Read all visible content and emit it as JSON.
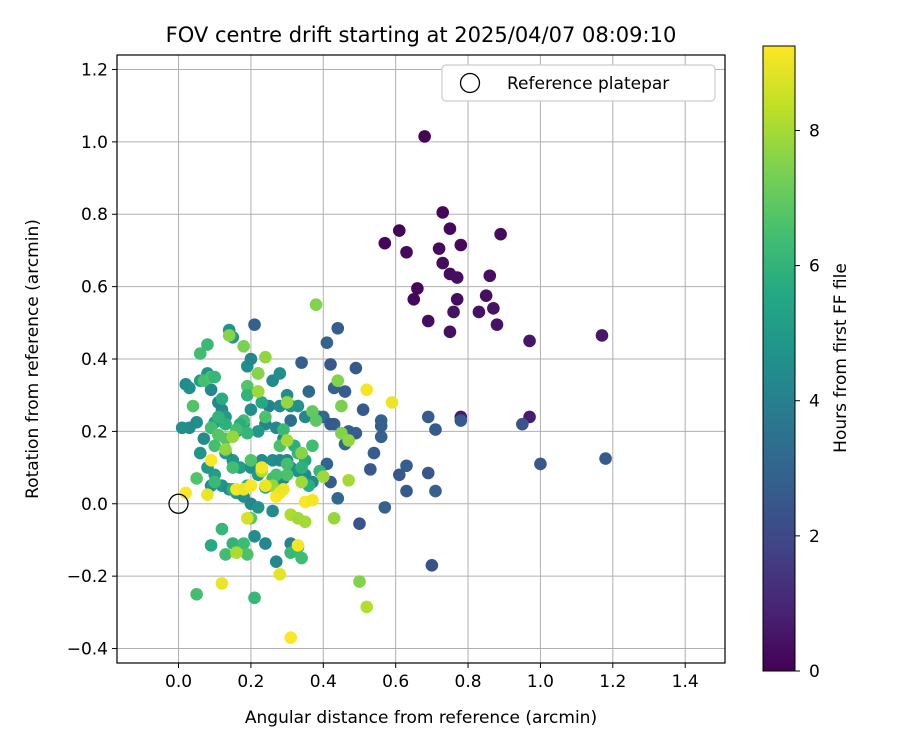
{
  "chart_data": {
    "type": "scatter",
    "title": "FOV centre drift starting at 2025/04/07 08:09:10",
    "xlabel": "Angular distance from reference (arcmin)",
    "ylabel": "Rotation from reference (arcmin)",
    "xlim": [
      -0.17,
      1.51
    ],
    "ylim": [
      -0.44,
      1.24
    ],
    "xticks": [
      0.0,
      0.2,
      0.4,
      0.6,
      0.8,
      1.0,
      1.2,
      1.4
    ],
    "xtick_labels": [
      "0.0",
      "0.2",
      "0.4",
      "0.6",
      "0.8",
      "1.0",
      "1.2",
      "1.4"
    ],
    "yticks": [
      -0.4,
      -0.2,
      0.0,
      0.2,
      0.4,
      0.6,
      0.8,
      1.0,
      1.2
    ],
    "ytick_labels": [
      "−0.4",
      "−0.2",
      "0.0",
      "0.2",
      "0.4",
      "0.6",
      "0.8",
      "1.0",
      "1.2"
    ],
    "grid": true,
    "colormap": "viridis",
    "color_range": [
      0,
      9.25
    ],
    "colorbar": {
      "label": "Hours from first FF file",
      "ticks": [
        0,
        2,
        4,
        6,
        8
      ],
      "tick_labels": [
        "0",
        "2",
        "4",
        "6",
        "8"
      ]
    },
    "legend": {
      "placement": "top-right",
      "entries": [
        {
          "label": "Reference platepar",
          "marker": "open-circle",
          "x": 0.0,
          "y": 0.0
        }
      ]
    },
    "series": [
      {
        "points": [
          [
            0.68,
            1.015
          ],
          [
            0.73,
            0.805
          ],
          [
            0.61,
            0.755
          ],
          [
            0.75,
            0.76
          ],
          [
            0.89,
            0.745
          ],
          [
            0.57,
            0.72
          ],
          [
            0.72,
            0.705
          ],
          [
            0.78,
            0.715
          ],
          [
            0.63,
            0.695
          ],
          [
            0.73,
            0.665
          ],
          [
            0.75,
            0.635
          ],
          [
            0.77,
            0.625
          ],
          [
            0.86,
            0.63
          ],
          [
            0.66,
            0.595
          ],
          [
            0.65,
            0.565
          ],
          [
            0.77,
            0.565
          ],
          [
            0.85,
            0.575
          ],
          [
            0.76,
            0.53
          ],
          [
            0.83,
            0.53
          ],
          [
            0.87,
            0.54
          ],
          [
            0.69,
            0.505
          ],
          [
            0.88,
            0.495
          ],
          [
            0.75,
            0.475
          ],
          [
            0.97,
            0.45
          ],
          [
            1.17,
            0.465
          ],
          [
            0.78,
            0.24
          ],
          [
            0.97,
            0.24
          ]
        ],
        "hours": [
          0.05,
          0.15,
          0.1,
          0.2,
          0.3,
          0.12,
          0.25,
          0.18,
          0.22,
          0.28,
          0.3,
          0.35,
          0.4,
          0.15,
          0.2,
          0.33,
          0.38,
          0.45,
          0.42,
          0.48,
          0.3,
          0.5,
          0.4,
          0.55,
          0.6,
          0.65,
          0.7
        ]
      },
      {
        "points": [
          [
            0.21,
            0.495
          ],
          [
            0.44,
            0.485
          ],
          [
            0.41,
            0.445
          ],
          [
            0.49,
            0.375
          ],
          [
            0.34,
            0.39
          ],
          [
            0.42,
            0.385
          ],
          [
            0.43,
            0.32
          ],
          [
            0.46,
            0.31
          ],
          [
            0.4,
            0.24
          ],
          [
            0.43,
            0.22
          ],
          [
            0.42,
            0.22
          ],
          [
            0.47,
            0.2
          ],
          [
            0.49,
            0.195
          ],
          [
            0.51,
            0.26
          ],
          [
            0.56,
            0.23
          ],
          [
            0.56,
            0.215
          ],
          [
            0.56,
            0.185
          ],
          [
            0.54,
            0.14
          ],
          [
            0.41,
            0.11
          ],
          [
            0.53,
            0.095
          ],
          [
            0.63,
            0.105
          ],
          [
            0.61,
            0.08
          ],
          [
            0.42,
            0.06
          ],
          [
            0.44,
            0.015
          ],
          [
            0.63,
            0.035
          ],
          [
            0.57,
            -0.01
          ],
          [
            0.5,
            -0.055
          ],
          [
            0.69,
            0.24
          ],
          [
            0.71,
            0.205
          ],
          [
            0.69,
            0.085
          ],
          [
            0.71,
            0.035
          ],
          [
            0.7,
            -0.17
          ],
          [
            0.78,
            0.23
          ],
          [
            0.95,
            0.22
          ],
          [
            1.0,
            0.11
          ],
          [
            1.18,
            0.125
          ],
          [
            0.46,
            0.165
          ],
          [
            0.39,
            0.24
          ],
          [
            0.31,
            0.23
          ],
          [
            0.36,
            0.31
          ]
        ],
        "hours": [
          2.8,
          2.7,
          2.9,
          2.6,
          2.8,
          2.5,
          2.9,
          2.7,
          3.0,
          2.8,
          2.6,
          2.9,
          2.7,
          2.6,
          3.0,
          2.8,
          2.9,
          2.7,
          3.0,
          2.6,
          2.8,
          2.5,
          2.7,
          3.1,
          2.6,
          2.9,
          2.4,
          2.7,
          2.6,
          2.5,
          2.8,
          2.3,
          2.6,
          2.4,
          2.5,
          2.6,
          3.1,
          3.2,
          3.3,
          3.1
        ]
      },
      {
        "points": [
          [
            0.02,
            0.33
          ],
          [
            0.03,
            0.32
          ],
          [
            0.06,
            0.34
          ],
          [
            0.08,
            0.36
          ],
          [
            0.09,
            0.315
          ],
          [
            0.05,
            0.225
          ],
          [
            0.1,
            0.225
          ],
          [
            0.12,
            0.26
          ],
          [
            0.13,
            0.24
          ],
          [
            0.14,
            0.48
          ],
          [
            0.15,
            0.46
          ],
          [
            0.19,
            0.38
          ],
          [
            0.2,
            0.4
          ],
          [
            0.22,
            0.36
          ],
          [
            0.26,
            0.34
          ],
          [
            0.28,
            0.36
          ],
          [
            0.3,
            0.3
          ],
          [
            0.25,
            0.27
          ],
          [
            0.24,
            0.22
          ],
          [
            0.27,
            0.21
          ],
          [
            0.28,
            0.27
          ],
          [
            0.31,
            0.27
          ],
          [
            0.33,
            0.27
          ],
          [
            0.35,
            0.24
          ],
          [
            0.16,
            0.2
          ],
          [
            0.18,
            0.22
          ],
          [
            0.2,
            0.26
          ],
          [
            0.22,
            0.2
          ],
          [
            0.23,
            0.12
          ],
          [
            0.26,
            0.12
          ],
          [
            0.28,
            0.12
          ],
          [
            0.3,
            0.12
          ],
          [
            0.31,
            0.1
          ],
          [
            0.33,
            0.09
          ],
          [
            0.35,
            0.08
          ],
          [
            0.37,
            0.06
          ],
          [
            0.13,
            0.14
          ],
          [
            0.15,
            0.12
          ],
          [
            0.17,
            0.1
          ],
          [
            0.2,
            0.1
          ],
          [
            0.22,
            0.08
          ],
          [
            0.25,
            0.05
          ],
          [
            0.27,
            0.05
          ],
          [
            0.29,
            0.07
          ],
          [
            0.1,
            0.08
          ],
          [
            0.12,
            0.05
          ],
          [
            0.14,
            0.04
          ],
          [
            0.16,
            0.03
          ],
          [
            0.18,
            0.02
          ],
          [
            0.2,
            0.0
          ],
          [
            0.22,
            -0.01
          ],
          [
            0.26,
            -0.02
          ],
          [
            0.21,
            -0.09
          ],
          [
            0.24,
            -0.11
          ],
          [
            0.27,
            -0.16
          ],
          [
            0.31,
            -0.11
          ],
          [
            0.06,
            0.14
          ],
          [
            0.07,
            0.18
          ],
          [
            0.08,
            0.1
          ],
          [
            0.09,
            0.05
          ],
          [
            0.03,
            0.21
          ],
          [
            0.01,
            0.21
          ],
          [
            0.11,
            0.28
          ],
          [
            0.29,
            0.18
          ]
        ],
        "hours": [
          4.4,
          4.6,
          5.0,
          4.8,
          4.3,
          4.6,
          5.2,
          4.4,
          5.0,
          4.7,
          4.9,
          4.5,
          4.2,
          4.4,
          4.3,
          4.6,
          4.5,
          4.1,
          4.2,
          4.3,
          4.4,
          4.6,
          4.7,
          4.2,
          4.8,
          5.1,
          4.5,
          4.9,
          4.3,
          4.6,
          4.4,
          4.2,
          4.5,
          4.7,
          4.4,
          4.3,
          5.0,
          4.8,
          5.2,
          4.6,
          4.9,
          4.4,
          4.6,
          4.3,
          5.1,
          4.7,
          4.5,
          4.9,
          4.6,
          4.3,
          4.8,
          4.4,
          4.5,
          4.2,
          4.3,
          4.1,
          4.7,
          4.5,
          4.9,
          4.6,
          4.4,
          4.6,
          4.2,
          4.3
        ]
      },
      {
        "points": [
          [
            0.06,
            0.415
          ],
          [
            0.08,
            0.44
          ],
          [
            0.07,
            0.34
          ],
          [
            0.09,
            0.35
          ],
          [
            0.1,
            0.35
          ],
          [
            0.12,
            0.29
          ],
          [
            0.19,
            0.325
          ],
          [
            0.19,
            0.3
          ],
          [
            0.22,
            0.31
          ],
          [
            0.23,
            0.28
          ],
          [
            0.18,
            0.23
          ],
          [
            0.17,
            0.22
          ],
          [
            0.11,
            0.24
          ],
          [
            0.13,
            0.22
          ],
          [
            0.16,
            0.205
          ],
          [
            0.19,
            0.195
          ],
          [
            0.29,
            0.205
          ],
          [
            0.32,
            0.16
          ],
          [
            0.33,
            0.14
          ],
          [
            0.35,
            0.12
          ],
          [
            0.37,
            0.16
          ],
          [
            0.34,
            0.1
          ],
          [
            0.39,
            0.09
          ],
          [
            0.36,
            0.05
          ],
          [
            0.3,
            0.08
          ],
          [
            0.26,
            0.07
          ],
          [
            0.24,
            0.045
          ],
          [
            0.19,
            0.05
          ],
          [
            0.15,
            0.04
          ],
          [
            0.1,
            0.06
          ],
          [
            0.05,
            0.07
          ],
          [
            0.2,
            -0.04
          ],
          [
            0.27,
            0.08
          ],
          [
            0.12,
            -0.07
          ],
          [
            0.09,
            -0.115
          ],
          [
            0.15,
            -0.11
          ],
          [
            0.18,
            -0.11
          ],
          [
            0.33,
            -0.12
          ],
          [
            0.31,
            -0.135
          ],
          [
            0.13,
            -0.14
          ],
          [
            0.19,
            -0.14
          ],
          [
            0.05,
            -0.25
          ],
          [
            0.21,
            -0.26
          ],
          [
            0.34,
            -0.15
          ],
          [
            0.04,
            0.27
          ],
          [
            0.09,
            0.21
          ],
          [
            0.11,
            0.19
          ],
          [
            0.24,
            0.24
          ],
          [
            0.37,
            0.255
          ],
          [
            0.38,
            0.23
          ],
          [
            0.3,
            0.11
          ],
          [
            0.2,
            0.12
          ],
          [
            0.15,
            0.1
          ],
          [
            0.28,
            0.16
          ],
          [
            0.13,
            0.18
          ],
          [
            0.1,
            0.16
          ]
        ],
        "hours": [
          6.4,
          6.2,
          6.5,
          6.6,
          6.1,
          5.7,
          6.7,
          6.0,
          6.3,
          5.6,
          6.4,
          5.8,
          6.0,
          5.9,
          6.5,
          6.1,
          6.2,
          5.8,
          6.0,
          5.6,
          6.4,
          5.9,
          6.1,
          5.7,
          6.6,
          6.3,
          5.8,
          6.0,
          5.9,
          6.2,
          6.7,
          6.8,
          6.5,
          6.1,
          5.6,
          6.0,
          6.3,
          5.9,
          6.2,
          6.4,
          6.6,
          6.5,
          6.1,
          6.3,
          6.7,
          6.4,
          6.8,
          6.6,
          7.0,
          6.9,
          6.5,
          6.7,
          6.4,
          6.6,
          6.8,
          6.5
        ]
      },
      {
        "points": [
          [
            0.38,
            0.55
          ],
          [
            0.14,
            0.465
          ],
          [
            0.18,
            0.435
          ],
          [
            0.24,
            0.405
          ],
          [
            0.22,
            0.36
          ],
          [
            0.3,
            0.28
          ],
          [
            0.44,
            0.34
          ],
          [
            0.45,
            0.27
          ],
          [
            0.22,
            0.31
          ],
          [
            0.15,
            0.185
          ],
          [
            0.3,
            0.175
          ],
          [
            0.34,
            0.14
          ],
          [
            0.45,
            0.195
          ],
          [
            0.47,
            0.175
          ],
          [
            0.47,
            0.065
          ],
          [
            0.34,
            0.06
          ],
          [
            0.26,
            0.05
          ],
          [
            0.23,
            0.09
          ],
          [
            0.31,
            -0.03
          ],
          [
            0.33,
            -0.04
          ],
          [
            0.35,
            -0.05
          ],
          [
            0.43,
            -0.04
          ],
          [
            0.5,
            -0.215
          ],
          [
            0.52,
            -0.285
          ],
          [
            0.16,
            -0.135
          ],
          [
            0.4,
            0.075
          ],
          [
            0.13,
            0.15
          ]
        ],
        "hours": [
          7.5,
          7.6,
          7.4,
          7.7,
          7.6,
          7.8,
          7.5,
          7.4,
          7.9,
          7.8,
          8.0,
          7.6,
          7.5,
          7.7,
          8.0,
          7.9,
          7.8,
          8.2,
          8.1,
          7.9,
          8.0,
          7.8,
          7.5,
          8.2,
          8.1,
          7.9,
          7.7
        ]
      },
      {
        "points": [
          [
            0.52,
            0.315
          ],
          [
            0.59,
            0.28
          ],
          [
            0.09,
            0.12
          ],
          [
            0.16,
            0.04
          ],
          [
            0.18,
            0.04
          ],
          [
            0.2,
            0.05
          ],
          [
            0.23,
            0.1
          ],
          [
            0.24,
            0.05
          ],
          [
            0.27,
            0.02
          ],
          [
            0.28,
            0.03
          ],
          [
            0.29,
            0.04
          ],
          [
            0.35,
            0.005
          ],
          [
            0.37,
            0.01
          ],
          [
            0.08,
            0.025
          ],
          [
            0.02,
            0.03
          ],
          [
            0.19,
            -0.04
          ],
          [
            0.33,
            -0.115
          ],
          [
            0.28,
            -0.195
          ],
          [
            0.12,
            -0.22
          ],
          [
            0.31,
            -0.37
          ]
        ],
        "hours": [
          9.1,
          9.0,
          9.2,
          9.1,
          9.0,
          9.2,
          9.1,
          9.0,
          9.2,
          9.1,
          9.0,
          9.2,
          9.1,
          9.0,
          9.2,
          8.7,
          9.1,
          8.9,
          9.0,
          9.2
        ]
      }
    ]
  }
}
